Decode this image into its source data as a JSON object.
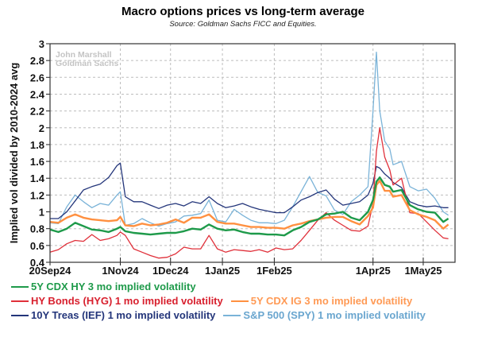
{
  "chart_data": {
    "type": "line",
    "title": "Macro options prices vs long-term average",
    "subtitle": "Source: Goldman Sachs FICC and Equities.",
    "watermark": [
      "John Marshall",
      "Goldman Sachs"
    ],
    "xlabel": "",
    "ylabel": "Implied vol divided by 2010-2024 avg",
    "ylim": [
      0.4,
      3.0
    ],
    "yticks": [
      0.4,
      0.6,
      0.8,
      1,
      1.2,
      1.4,
      1.6,
      1.8,
      2,
      2.2,
      2.4,
      2.6,
      2.8,
      3
    ],
    "ytick_labels": [
      "0.4",
      "0.6",
      "0.8",
      "1",
      "1.2",
      "1.4",
      "1.6",
      "1.8",
      "2",
      "2.2",
      "2.4",
      "2.6",
      "2.8",
      "3"
    ],
    "x_start": "2024-09-20",
    "x_end": "2025-05-20",
    "xticks": [
      {
        "date": "2024-09-20",
        "label": "20Sep24"
      },
      {
        "date": "2024-11-01",
        "label": "1Nov24"
      },
      {
        "date": "2024-12-01",
        "label": "1Dec24"
      },
      {
        "date": "2025-01-01",
        "label": "1Jan25"
      },
      {
        "date": "2025-02-01",
        "label": "1Feb25"
      },
      {
        "date": "2025-03-01",
        "label": ""
      },
      {
        "date": "2025-04-01",
        "label": "1Apr25"
      },
      {
        "date": "2025-05-01",
        "label": "1May25"
      }
    ],
    "grid": true,
    "legend_position": "bottom",
    "x_days": [
      0,
      5,
      10,
      15,
      20,
      25,
      30,
      35,
      40,
      42,
      45,
      50,
      55,
      60,
      65,
      70,
      75,
      80,
      85,
      90,
      95,
      100,
      105,
      110,
      115,
      120,
      125,
      130,
      135,
      140,
      145,
      150,
      155,
      160,
      165,
      170,
      175,
      180,
      185,
      190,
      193,
      195,
      197,
      200,
      203,
      205,
      210,
      215,
      220,
      225,
      230,
      235,
      238
    ],
    "series": [
      {
        "name": "5Y CDX HY 3 mo implied volatility",
        "color": "#1e9a4a",
        "width": 2.4,
        "values": [
          0.79,
          0.76,
          0.8,
          0.87,
          0.83,
          0.79,
          0.78,
          0.76,
          0.8,
          0.82,
          0.77,
          0.75,
          0.74,
          0.73,
          0.74,
          0.75,
          0.75,
          0.77,
          0.8,
          0.79,
          0.85,
          0.8,
          0.78,
          0.79,
          0.76,
          0.74,
          0.74,
          0.73,
          0.73,
          0.72,
          0.78,
          0.82,
          0.88,
          0.91,
          0.97,
          0.98,
          1.0,
          0.93,
          0.9,
          1.0,
          1.14,
          1.36,
          1.41,
          1.32,
          1.3,
          1.24,
          1.26,
          1.08,
          1.03,
          1.0,
          0.99,
          0.88,
          0.92
        ]
      },
      {
        "name": "HY Bonds (HYG) 1 mo implied volatility",
        "color": "#e0303a",
        "width": 1.3,
        "values": [
          0.52,
          0.55,
          0.62,
          0.66,
          0.65,
          0.73,
          0.66,
          0.68,
          0.72,
          0.76,
          0.72,
          0.56,
          0.52,
          0.48,
          0.45,
          0.46,
          0.5,
          0.58,
          0.56,
          0.56,
          0.72,
          0.56,
          0.52,
          0.55,
          0.54,
          0.53,
          0.55,
          0.52,
          0.57,
          0.55,
          0.56,
          0.66,
          0.78,
          0.9,
          0.99,
          0.9,
          0.84,
          0.78,
          0.77,
          0.83,
          1.1,
          1.72,
          2.0,
          1.65,
          1.5,
          1.32,
          1.4,
          0.99,
          0.98,
          0.88,
          0.78,
          0.69,
          0.68
        ]
      },
      {
        "name": "5Y CDX IG 3 mo implied volatility",
        "color": "#ff9040",
        "width": 2.4,
        "values": [
          0.88,
          0.87,
          0.93,
          0.97,
          0.93,
          0.91,
          0.9,
          0.89,
          0.9,
          0.94,
          0.84,
          0.83,
          0.86,
          0.84,
          0.85,
          0.87,
          0.91,
          0.87,
          0.93,
          0.93,
          0.97,
          0.88,
          0.86,
          0.86,
          0.84,
          0.82,
          0.82,
          0.81,
          0.81,
          0.8,
          0.84,
          0.86,
          0.89,
          0.91,
          0.93,
          0.94,
          0.94,
          0.89,
          0.85,
          0.95,
          1.05,
          1.32,
          1.37,
          1.25,
          1.25,
          1.18,
          1.2,
          1.02,
          0.97,
          0.94,
          0.9,
          0.8,
          0.85
        ]
      },
      {
        "name": "10Y Treas (IEF) 1 mo implied volatility",
        "color": "#23357a",
        "width": 1.3,
        "values": [
          0.92,
          0.92,
          1.0,
          1.13,
          1.26,
          1.3,
          1.33,
          1.41,
          1.55,
          1.58,
          1.18,
          1.12,
          1.12,
          1.08,
          1.04,
          1.08,
          1.1,
          1.07,
          1.12,
          1.1,
          1.18,
          1.1,
          1.05,
          1.07,
          1.1,
          1.06,
          1.03,
          1.01,
          0.99,
          0.99,
          1.06,
          1.14,
          1.18,
          1.23,
          1.26,
          1.15,
          1.08,
          1.1,
          1.12,
          1.2,
          1.34,
          1.54,
          1.52,
          1.45,
          1.4,
          1.35,
          1.29,
          1.12,
          1.08,
          1.06,
          1.07,
          1.05,
          1.05
        ]
      },
      {
        "name": "S&P 500 (SPY) 1 mo implied volatility",
        "color": "#7ab3d8",
        "width": 1.3,
        "values": [
          0.87,
          0.86,
          1.06,
          1.2,
          1.12,
          1.05,
          1.1,
          1.08,
          1.2,
          1.24,
          0.84,
          0.86,
          0.92,
          0.87,
          0.83,
          0.86,
          0.88,
          0.95,
          0.96,
          0.98,
          1.14,
          0.9,
          0.88,
          1.03,
          0.96,
          0.9,
          0.87,
          0.87,
          0.86,
          0.9,
          1.06,
          1.24,
          1.42,
          1.23,
          1.19,
          1.02,
          0.97,
          1.12,
          1.2,
          1.3,
          2.2,
          2.9,
          2.2,
          1.84,
          1.75,
          1.56,
          1.6,
          1.3,
          1.25,
          1.27,
          1.16,
          1.0,
          0.96
        ]
      }
    ]
  }
}
